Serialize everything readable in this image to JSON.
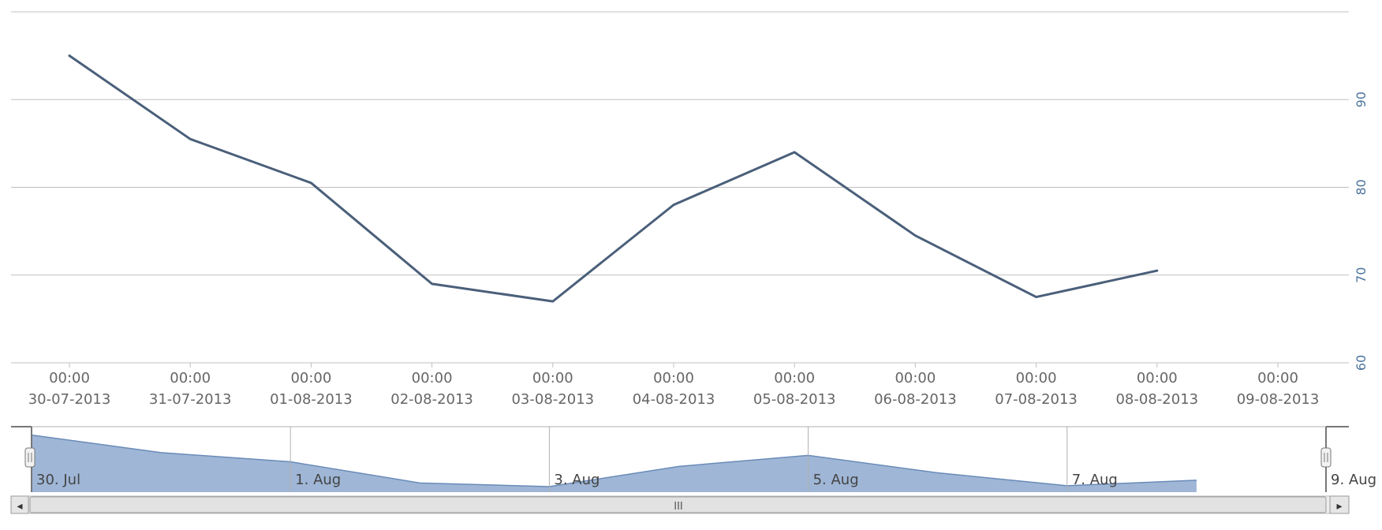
{
  "chart_data": {
    "type": "line",
    "title": "",
    "xlabel": "",
    "ylabel": "",
    "x_tick_labels": [
      {
        "time": "00:00",
        "date": "30-07-2013"
      },
      {
        "time": "00:00",
        "date": "31-07-2013"
      },
      {
        "time": "00:00",
        "date": "01-08-2013"
      },
      {
        "time": "00:00",
        "date": "02-08-2013"
      },
      {
        "time": "00:00",
        "date": "03-08-2013"
      },
      {
        "time": "00:00",
        "date": "04-08-2013"
      },
      {
        "time": "00:00",
        "date": "05-08-2013"
      },
      {
        "time": "00:00",
        "date": "06-08-2013"
      },
      {
        "time": "00:00",
        "date": "07-08-2013"
      },
      {
        "time": "00:00",
        "date": "08-08-2013"
      },
      {
        "time": "00:00",
        "date": "09-08-2013"
      }
    ],
    "x": [
      "30-07-2013",
      "31-07-2013",
      "01-08-2013",
      "02-08-2013",
      "03-08-2013",
      "04-08-2013",
      "05-08-2013",
      "06-08-2013",
      "07-08-2013",
      "08-08-2013"
    ],
    "series": [
      {
        "values": [
          95,
          85.5,
          80.5,
          69,
          67,
          78,
          84,
          74.5,
          67.5,
          70.5
        ],
        "color": "#4a5f7a"
      }
    ],
    "y_ticks": [
      "60",
      "70",
      "80",
      "90"
    ],
    "ylim": [
      60,
      100
    ],
    "y_axis_position": "right",
    "grid": true,
    "legend": "none",
    "navigator": {
      "labels": [
        "30. Jul",
        "1. Aug",
        "3. Aug",
        "5. Aug",
        "7. Aug",
        "9. Aug"
      ],
      "fill_color": "#9fb6d6",
      "scrollbar_center": "III",
      "scroll_left_arrow": "◂",
      "scroll_right_arrow": "▸"
    }
  }
}
